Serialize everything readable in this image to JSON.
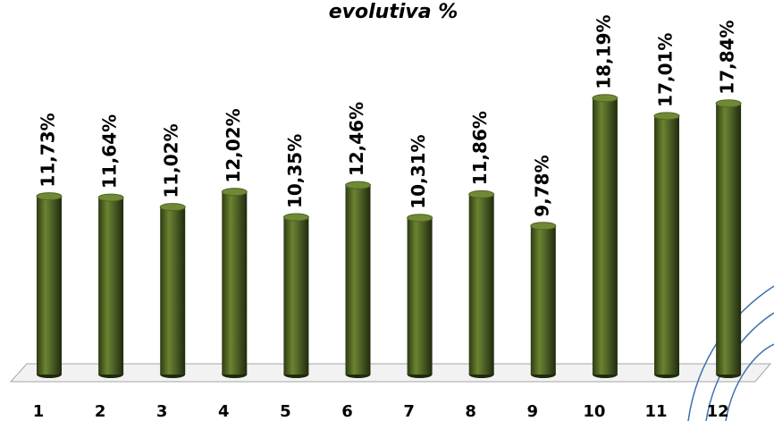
{
  "chart_data": {
    "type": "bar",
    "title": "evolutiva %",
    "categories": [
      "1",
      "2",
      "3",
      "4",
      "5",
      "6",
      "7",
      "8",
      "9",
      "10",
      "11",
      "12"
    ],
    "values": [
      11.73,
      11.64,
      11.02,
      12.02,
      10.35,
      12.46,
      10.31,
      11.86,
      9.78,
      18.19,
      17.01,
      17.84
    ],
    "value_labels": [
      "11,73%",
      "11,64%",
      "11,02%",
      "12,02%",
      "10,35%",
      "12,46%",
      "10,31%",
      "11,86%",
      "9,78%",
      "18,19%",
      "17,01%",
      "17,84%"
    ],
    "color": "#4f6228"
  }
}
